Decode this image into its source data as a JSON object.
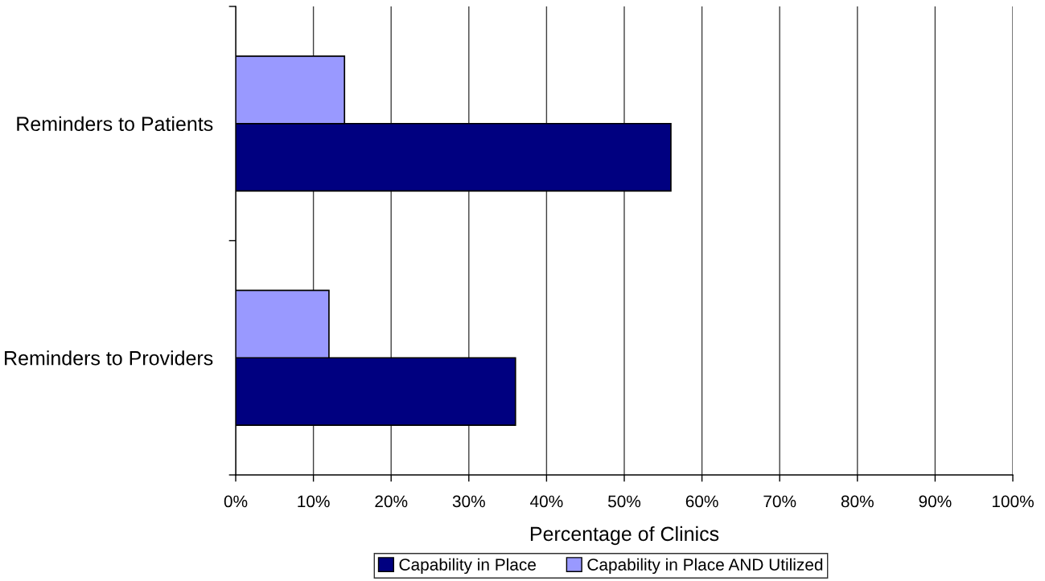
{
  "chart_data": {
    "type": "bar",
    "orientation": "horizontal",
    "categories": [
      "Reminders to Patients",
      "Reminders to Providers"
    ],
    "series": [
      {
        "name": "Capability in Place",
        "color": "#000080",
        "values": [
          56,
          36
        ]
      },
      {
        "name": "Capability in Place AND Utilized",
        "color": "#9999ff",
        "values": [
          14,
          12
        ]
      }
    ],
    "xlabel": "Percentage of Clinics",
    "xlim": [
      0,
      100
    ],
    "xticks": [
      {
        "value": 0,
        "label": "0%"
      },
      {
        "value": 10,
        "label": "10%"
      },
      {
        "value": 20,
        "label": "20%"
      },
      {
        "value": 30,
        "label": "30%"
      },
      {
        "value": 40,
        "label": "40%"
      },
      {
        "value": 50,
        "label": "50%"
      },
      {
        "value": 60,
        "label": "60%"
      },
      {
        "value": 70,
        "label": "70%"
      },
      {
        "value": 80,
        "label": "80%"
      },
      {
        "value": 90,
        "label": "90%"
      },
      {
        "value": 100,
        "label": "100%"
      }
    ],
    "grid": "x",
    "legend": "bottom"
  }
}
